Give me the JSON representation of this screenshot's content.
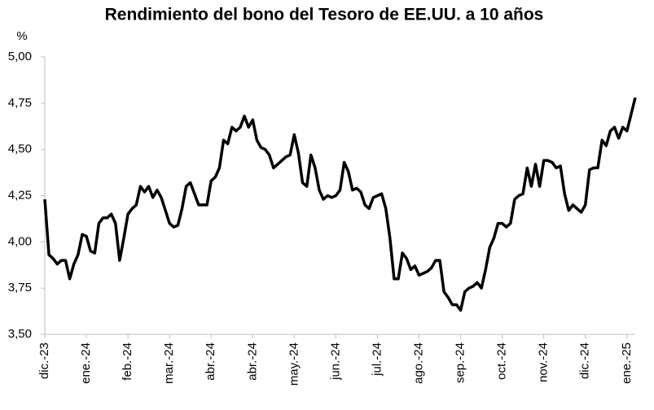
{
  "chart_data": {
    "type": "line",
    "title": "Rendimiento del bono del Tesoro de EE.UU. a 10 años",
    "ylabel": "%",
    "categories": [
      "dic.-23",
      null,
      null,
      null,
      null,
      null,
      null,
      null,
      null,
      null,
      "ene.-24",
      null,
      null,
      null,
      null,
      null,
      null,
      null,
      null,
      null,
      "feb.-24",
      null,
      null,
      null,
      null,
      null,
      null,
      null,
      null,
      null,
      "mar.-24",
      null,
      null,
      null,
      null,
      null,
      null,
      null,
      null,
      null,
      "abr.-24",
      null,
      null,
      null,
      null,
      null,
      null,
      null,
      null,
      null,
      "abr.-24",
      null,
      null,
      null,
      null,
      null,
      null,
      null,
      null,
      null,
      "may.-24",
      null,
      null,
      null,
      null,
      null,
      null,
      null,
      null,
      null,
      "jun.-24",
      null,
      null,
      null,
      null,
      null,
      null,
      null,
      null,
      null,
      "jul.-24",
      null,
      null,
      null,
      null,
      null,
      null,
      null,
      null,
      null,
      "ago.-24",
      null,
      null,
      null,
      null,
      null,
      null,
      null,
      null,
      null,
      "sep.-24",
      null,
      null,
      null,
      null,
      null,
      null,
      null,
      null,
      null,
      "oct.-24",
      null,
      null,
      null,
      null,
      null,
      null,
      null,
      null,
      null,
      "nov.-24",
      null,
      null,
      null,
      null,
      null,
      null,
      null,
      null,
      null,
      "dic.-24",
      null,
      null,
      null,
      null,
      null,
      null,
      null,
      null,
      null,
      "ene.-25",
      null,
      null
    ],
    "values": [
      4.23,
      3.93,
      3.91,
      3.88,
      3.9,
      3.9,
      3.8,
      3.88,
      3.93,
      4.04,
      4.03,
      3.95,
      3.94,
      4.1,
      4.13,
      4.13,
      4.15,
      4.1,
      3.9,
      4.02,
      4.15,
      4.18,
      4.2,
      4.3,
      4.27,
      4.3,
      4.24,
      4.28,
      4.24,
      4.17,
      4.1,
      4.08,
      4.09,
      4.18,
      4.3,
      4.32,
      4.26,
      4.2,
      4.2,
      4.2,
      4.33,
      4.35,
      4.4,
      4.55,
      4.53,
      4.62,
      4.6,
      4.62,
      4.68,
      4.62,
      4.66,
      4.55,
      4.51,
      4.5,
      4.47,
      4.4,
      4.42,
      4.44,
      4.46,
      4.47,
      4.58,
      4.48,
      4.32,
      4.3,
      4.47,
      4.4,
      4.28,
      4.23,
      4.25,
      4.24,
      4.25,
      4.28,
      4.43,
      4.38,
      4.28,
      4.29,
      4.27,
      4.2,
      4.18,
      4.24,
      4.25,
      4.26,
      4.18,
      4.02,
      3.8,
      3.8,
      3.94,
      3.91,
      3.85,
      3.87,
      3.82,
      3.83,
      3.84,
      3.86,
      3.9,
      3.9,
      3.73,
      3.7,
      3.66,
      3.66,
      3.63,
      3.73,
      3.75,
      3.76,
      3.78,
      3.75,
      3.85,
      3.97,
      4.02,
      4.1,
      4.1,
      4.08,
      4.1,
      4.23,
      4.25,
      4.26,
      4.4,
      4.3,
      4.42,
      4.3,
      4.44,
      4.44,
      4.43,
      4.4,
      4.41,
      4.26,
      4.17,
      4.2,
      4.18,
      4.16,
      4.2,
      4.39,
      4.4,
      4.4,
      4.55,
      4.52,
      4.6,
      4.62,
      4.56,
      4.62,
      4.6,
      4.69,
      4.78
    ],
    "color": "#000000",
    "ylim": [
      3.5,
      5
    ],
    "yticks": [
      {
        "value": 3.5,
        "label": "3,50"
      },
      {
        "value": 3.75,
        "label": "3,75"
      },
      {
        "value": 4,
        "label": "4,00"
      },
      {
        "value": 4.25,
        "label": "4,25"
      },
      {
        "value": 4.5,
        "label": "4,50"
      },
      {
        "value": 4.75,
        "label": "4,75"
      },
      {
        "value": 5,
        "label": "5,00"
      }
    ],
    "grid": false
  }
}
